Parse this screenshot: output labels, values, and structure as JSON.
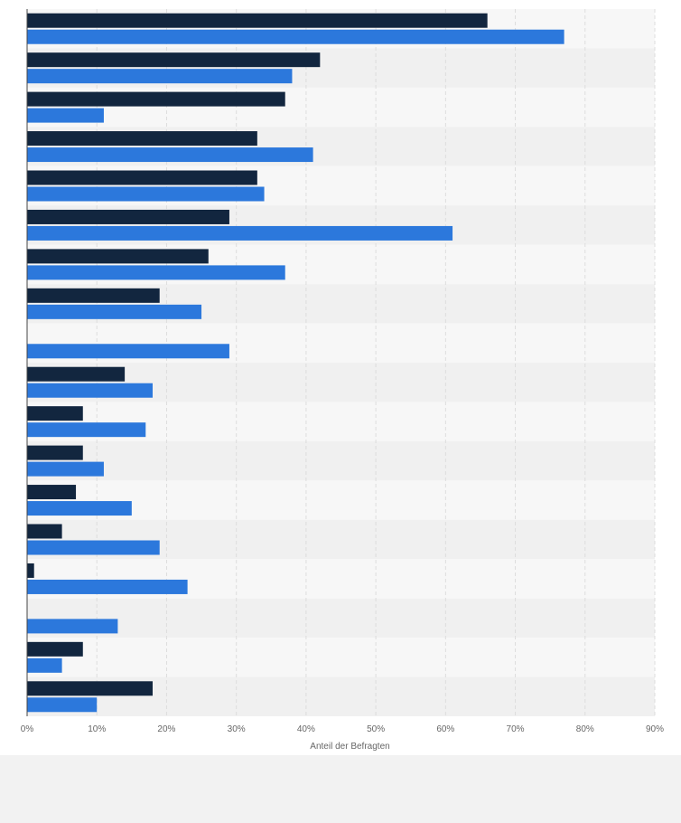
{
  "chart_data": {
    "type": "bar",
    "orientation": "horizontal",
    "xlabel": "Anteil der Befragten",
    "x_ticks": [
      "0%",
      "10%",
      "20%",
      "30%",
      "40%",
      "50%",
      "60%",
      "70%",
      "80%",
      "90%"
    ],
    "xlim": [
      0,
      90
    ],
    "grid": true,
    "colors": {
      "series_dark": "#12263f",
      "series_blue": "#2c78dc",
      "grid": "#dddddd",
      "band_light": "#f7f7f7",
      "band_dark": "#f0f0f0"
    },
    "series": [
      {
        "values": [
          66,
          42,
          37,
          33,
          33,
          29,
          26,
          19,
          null,
          14,
          8,
          8,
          7,
          5,
          1,
          null,
          8,
          18
        ]
      },
      {
        "values": [
          77,
          38,
          11,
          41,
          34,
          61,
          37,
          25,
          29,
          18,
          17,
          11,
          15,
          19,
          23,
          13,
          5,
          10
        ]
      }
    ]
  }
}
